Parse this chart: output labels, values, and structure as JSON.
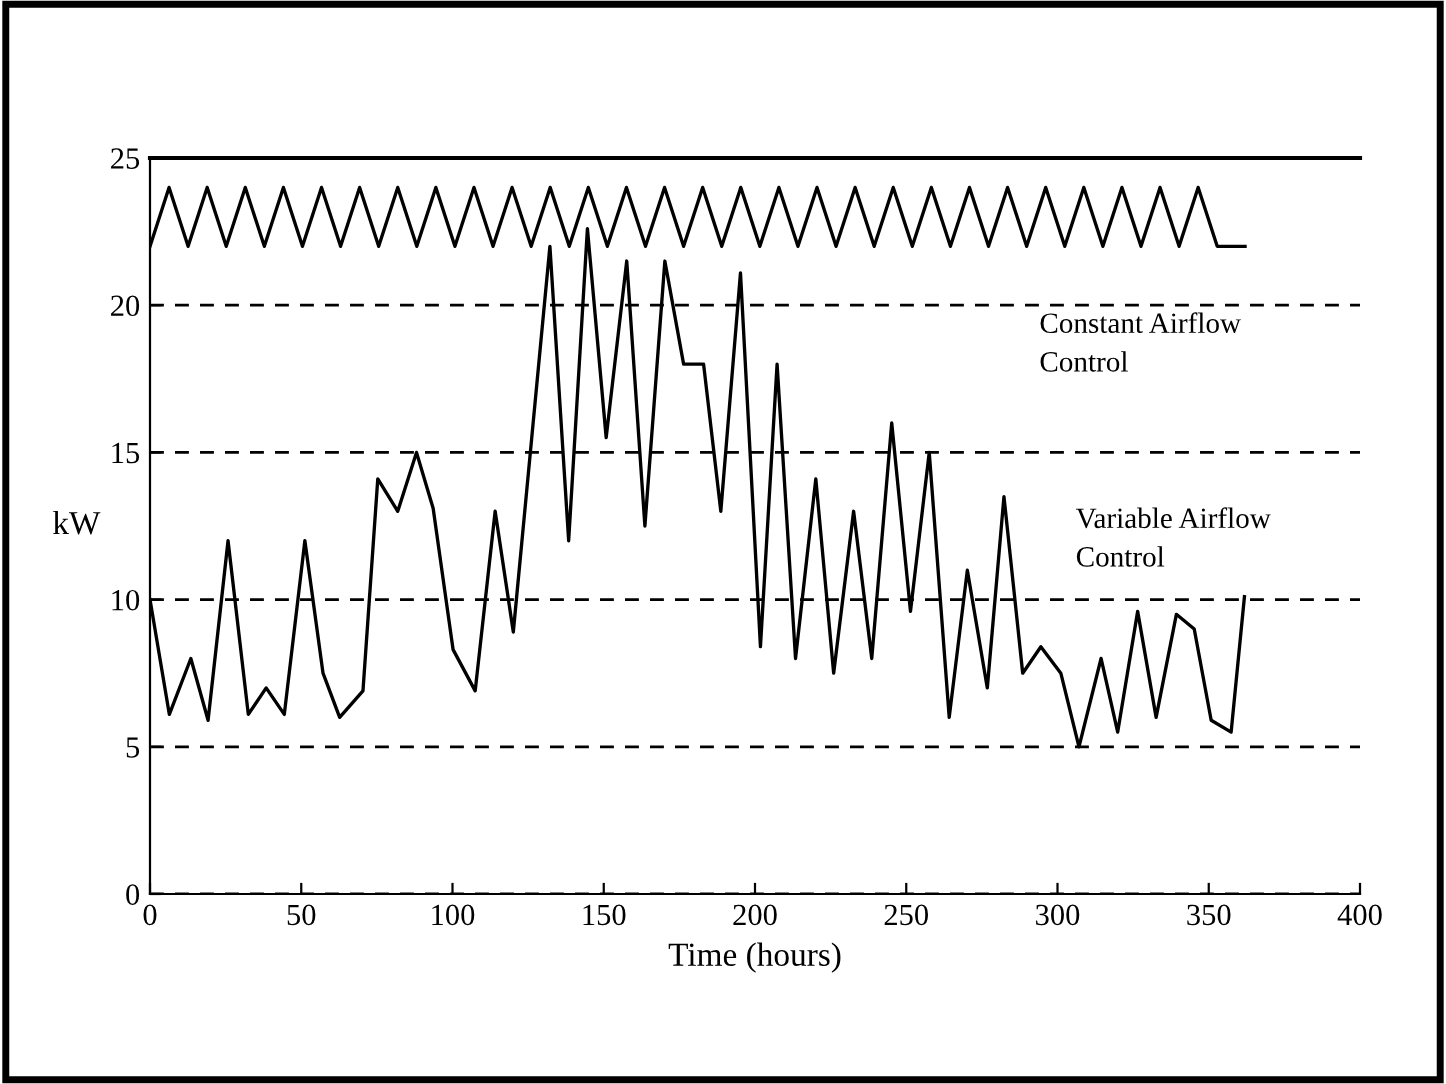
{
  "chart_data": {
    "type": "line",
    "xlabel": "Time (hours)",
    "ylabel": "kW",
    "xlim": [
      0,
      400
    ],
    "ylim": [
      0,
      25
    ],
    "xticks": [
      0,
      50,
      100,
      150,
      200,
      250,
      300,
      350,
      400
    ],
    "yticks": [
      0,
      5,
      10,
      15,
      20,
      25
    ],
    "grid": "y",
    "marker": "none",
    "line_style": "solid",
    "series": [
      {
        "name": "Constant Airflow\nControl",
        "color": "#000000",
        "x": [
          0,
          6.3,
          12.6,
          18.9,
          25.2,
          31.5,
          37.8,
          44.1,
          50.4,
          56.7,
          63,
          69.3,
          75.6,
          81.9,
          88.2,
          94.5,
          100.8,
          107.1,
          113.4,
          119.7,
          126,
          132.3,
          138.6,
          144.9,
          151.2,
          157.5,
          163.8,
          170.1,
          176.4,
          182.7,
          189,
          195.3,
          201.6,
          207.9,
          214.2,
          220.5,
          226.8,
          233.1,
          239.4,
          245.7,
          252,
          258.3,
          264.6,
          270.9,
          277.2,
          283.5,
          289.8,
          296.1,
          302.4,
          308.7,
          315,
          321.3,
          327.6,
          333.9,
          340.2,
          346.5,
          352.8,
          362
        ],
        "values": [
          22,
          24,
          22,
          24,
          22,
          24,
          22,
          24,
          22,
          24,
          22,
          24,
          22,
          24,
          22,
          24,
          22,
          24,
          22,
          24,
          22,
          24,
          22,
          24,
          22,
          24,
          22,
          24,
          22,
          24,
          22,
          24,
          22,
          24,
          22,
          24,
          22,
          24,
          22,
          24,
          22,
          24,
          22,
          24,
          22,
          24,
          22,
          24,
          22,
          24,
          22,
          24,
          22,
          24,
          22,
          24,
          22,
          22
        ]
      },
      {
        "name": "Variable Airflow\nControl",
        "color": "#000000",
        "x": [
          0,
          6.4,
          13.5,
          19.2,
          25.8,
          32.5,
          38.4,
          44.4,
          51.2,
          57.2,
          62.7,
          70.4,
          75.3,
          81.9,
          88.1,
          93.6,
          100.2,
          107.5,
          114.1,
          120.1,
          132.2,
          138.4,
          144.6,
          150.8,
          157.6,
          163.6,
          170.2,
          176.4,
          183,
          188.7,
          195.2,
          201.8,
          207.3,
          213.4,
          220.1,
          226,
          232.6,
          238.6,
          245.2,
          251.4,
          257.6,
          264.2,
          270.2,
          276.8,
          282.3,
          288.5,
          294.5,
          301.1,
          307.1,
          314.4,
          319.9,
          326.5,
          332.6,
          339.3,
          345.2,
          350.8,
          357.4,
          361.8
        ],
        "values": [
          10,
          6.1,
          8,
          5.9,
          12,
          6.1,
          7,
          6.1,
          12,
          7.5,
          6,
          6.9,
          14.1,
          13,
          15,
          13.1,
          8.3,
          6.9,
          13,
          8.9,
          22,
          12,
          22.6,
          15.5,
          21.5,
          12.5,
          21.5,
          18,
          18,
          13,
          21.1,
          8.4,
          18,
          8,
          14.1,
          7.5,
          13,
          8,
          16,
          9.6,
          15,
          6,
          11,
          7,
          13.5,
          7.5,
          8.4,
          7.5,
          5,
          8,
          5.5,
          9.6,
          6,
          9.5,
          9,
          5.9,
          5.5,
          10.1
        ]
      }
    ]
  }
}
